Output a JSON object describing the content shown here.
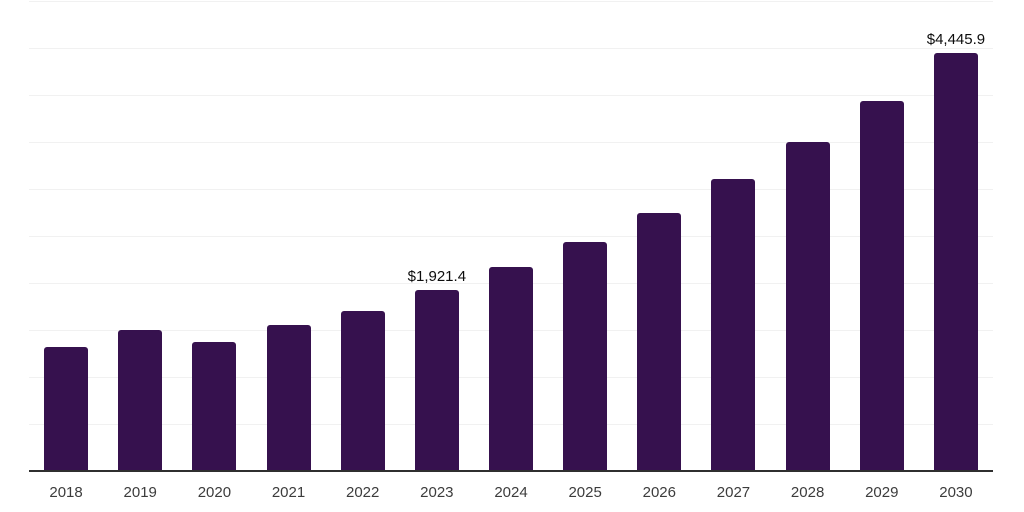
{
  "chart": {
    "background_color": "#ffffff",
    "bar_color": "#36114e",
    "axis_line_color": "#2f2f2f",
    "gridline_color": "#f1f1f1",
    "tick_label_color": "#3c3c3c",
    "data_label_color": "#0d0d0d"
  },
  "chart_data": {
    "type": "bar",
    "title": "",
    "xlabel": "",
    "ylabel": "",
    "categories": [
      "2018",
      "2019",
      "2020",
      "2021",
      "2022",
      "2023",
      "2024",
      "2025",
      "2026",
      "2027",
      "2028",
      "2029",
      "2030"
    ],
    "values": [
      1320,
      1495,
      1370,
      1550,
      1700,
      1921.4,
      2170,
      2440,
      2750,
      3110,
      3500,
      3940,
      4445.9
    ],
    "data_labels": [
      null,
      null,
      null,
      null,
      null,
      "$1,921.4",
      null,
      null,
      null,
      null,
      null,
      null,
      "$4,445.9"
    ],
    "ylim": [
      0,
      5000
    ],
    "grid_step": 500,
    "grid": "horizontal-only",
    "y_tick_labels_visible": false,
    "legend": "none"
  }
}
